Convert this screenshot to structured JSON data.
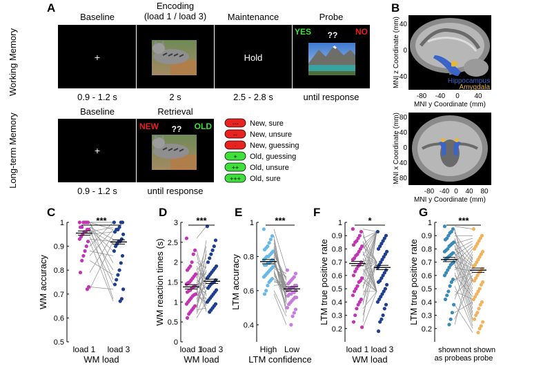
{
  "panel_letters": {
    "a": "A",
    "b": "B",
    "c": "C",
    "d": "D",
    "e": "E",
    "f": "F",
    "g": "G"
  },
  "wm": {
    "row_label": "Working Memory",
    "baseline": {
      "title": "Baseline",
      "fix": "+",
      "time": "0.9 - 1.2 s"
    },
    "encoding": {
      "title_line1": "Encoding",
      "title_line2": "(load 1 / load 3)",
      "time": "2 s"
    },
    "maintenance": {
      "title": "Maintenance",
      "text": "Hold",
      "time": "2.5 - 2.8 s"
    },
    "probe": {
      "title": "Probe",
      "yes": "YES",
      "q": "??",
      "no": "NO",
      "time": "until response"
    }
  },
  "ltm": {
    "row_label": "Long-term Memory",
    "baseline": {
      "title": "Baseline",
      "fix": "+",
      "time": "0.9 - 1.2 s"
    },
    "retrieval": {
      "title": "Retrieval",
      "new": "NEW",
      "q": "??",
      "old": "OLD",
      "time": "until response"
    },
    "legend": [
      {
        "sym": "---",
        "label": "New, sure",
        "color": "#e8221f"
      },
      {
        "sym": "--",
        "label": "New, unsure",
        "color": "#e8221f"
      },
      {
        "sym": "-",
        "label": "New, guessing",
        "color": "#e8221f"
      },
      {
        "sym": "+",
        "label": "Old, guessing",
        "color": "#3fe03a"
      },
      {
        "sym": "++",
        "label": "Old, unsure",
        "color": "#3fe03a"
      },
      {
        "sym": "+++",
        "label": "Old, sure",
        "color": "#3fe03a"
      }
    ]
  },
  "mri": {
    "sag": {
      "ylabel": "MNI z Coordinate (mm)",
      "xlabel": "MNI y Coordinate (mm)",
      "yticks": [
        "40",
        "0",
        "-40"
      ],
      "xticks": [
        "-80",
        "-40",
        "0",
        "40"
      ],
      "hippo": "Hippocampus",
      "amyg": "Amygdala"
    },
    "axial": {
      "ylabel": "MNI x Coordinate (mm)",
      "xlabel": "MNI y Coordinate (mm)",
      "yticks": [
        "-80",
        "-40",
        "0",
        "40",
        "80"
      ],
      "xticks": [
        "-80",
        "-40",
        "0",
        "40",
        "80"
      ]
    }
  },
  "colors": {
    "pink": "#c334b4",
    "navy": "#1e3f8f",
    "light_blue": "#69b9e6",
    "purple": "#c77bdc",
    "teal": "#3a8ab8",
    "orange": "#f3b35c",
    "red": "#e8221f",
    "green": "#3fe03a",
    "hippo": "#3b64c8",
    "amyg": "#e8b838"
  },
  "chart_data": [
    {
      "id": "C",
      "type": "scatter",
      "ylabel": "WM accuracy",
      "xlabel": "WM load",
      "categories": [
        "load 1",
        "load 3"
      ],
      "ylim": [
        0.5,
        1
      ],
      "yticks": [
        "0.5",
        "0.6",
        "0.7",
        "0.8",
        "0.9",
        "1"
      ],
      "significance": "***",
      "series": [
        {
          "values": [
            1,
            1,
            1,
            1,
            1,
            0.98,
            0.98,
            0.97,
            0.97,
            0.96,
            0.96,
            0.95,
            0.94,
            0.93,
            0.92,
            0.9,
            0.88,
            0.86,
            0.84,
            0.79,
            0.73,
            0.72
          ]
        },
        {
          "values": [
            1,
            1,
            1,
            0.98,
            0.97,
            0.97,
            0.96,
            0.95,
            0.93,
            0.92,
            0.92,
            0.91,
            0.9,
            0.88,
            0.86,
            0.83,
            0.8,
            0.78,
            0.76,
            0.74,
            0.72,
            0.68,
            0.67
          ]
        }
      ],
      "means": [
        0.955,
        0.918
      ]
    },
    {
      "id": "D",
      "type": "scatter",
      "ylabel": "WM reaction times (s)",
      "xlabel": "WM load",
      "categories": [
        "load 1",
        "load 3"
      ],
      "ylim": [
        0,
        3
      ],
      "yticks": [
        "0",
        "0.5",
        "1",
        "1.5",
        "2",
        "2.5",
        "3"
      ],
      "significance": "***",
      "series": [
        {
          "values": [
            2.6,
            2.3,
            2.2,
            2.0,
            1.9,
            1.85,
            1.8,
            1.7,
            1.65,
            1.6,
            1.55,
            1.5,
            1.48,
            1.45,
            1.4,
            1.38,
            1.35,
            1.3,
            1.28,
            1.25,
            1.2,
            1.18,
            1.15,
            1.1,
            1.05,
            1.0,
            0.95,
            0.9,
            0.85,
            0.8,
            0.75,
            0.7,
            0.6
          ]
        },
        {
          "values": [
            2.9,
            2.55,
            2.4,
            2.3,
            2.2,
            2.1,
            2.0,
            1.9,
            1.85,
            1.8,
            1.75,
            1.7,
            1.65,
            1.6,
            1.55,
            1.5,
            1.48,
            1.45,
            1.4,
            1.35,
            1.3,
            1.25,
            1.2,
            1.15,
            1.1,
            1.05,
            1.0,
            0.95,
            0.9,
            0.85,
            0.8,
            0.75
          ]
        }
      ],
      "means": [
        1.38,
        1.52
      ]
    },
    {
      "id": "E",
      "type": "scatter",
      "ylabel": "LTM accuracy",
      "xlabel": "LTM confidence",
      "categories": [
        "High",
        "Low"
      ],
      "ylim": [
        0.3,
        1
      ],
      "yticks": [
        "0.4",
        "0.6",
        "0.8",
        "1"
      ],
      "significance": "***",
      "series": [
        {
          "values": [
            0.96,
            0.92,
            0.9,
            0.88,
            0.86,
            0.85,
            0.84,
            0.83,
            0.82,
            0.81,
            0.8,
            0.8,
            0.79,
            0.78,
            0.78,
            0.77,
            0.76,
            0.76,
            0.75,
            0.75,
            0.74,
            0.73,
            0.72,
            0.71,
            0.7,
            0.69,
            0.68,
            0.67,
            0.66,
            0.65,
            0.63,
            0.6,
            0.58
          ]
        },
        {
          "values": [
            0.72,
            0.7,
            0.68,
            0.67,
            0.66,
            0.65,
            0.64,
            0.63,
            0.63,
            0.62,
            0.62,
            0.61,
            0.61,
            0.6,
            0.6,
            0.59,
            0.59,
            0.58,
            0.58,
            0.57,
            0.56,
            0.56,
            0.55,
            0.54,
            0.53,
            0.52,
            0.5,
            0.49,
            0.47,
            0.45,
            0.4
          ]
        }
      ],
      "means": [
        0.77,
        0.61
      ]
    },
    {
      "id": "F",
      "type": "scatter",
      "ylabel": "LTM true positive rate",
      "xlabel": "WM load",
      "categories": [
        "load 1",
        "load 3"
      ],
      "ylim": [
        0.1,
        1
      ],
      "yticks": [
        "0.2",
        "0.3",
        "0.4",
        "0.5",
        "0.6",
        "0.7",
        "0.8",
        "0.9",
        "1"
      ],
      "significance": "*",
      "series": [
        {
          "values": [
            0.95,
            0.93,
            0.9,
            0.88,
            0.86,
            0.85,
            0.83,
            0.82,
            0.8,
            0.78,
            0.76,
            0.75,
            0.73,
            0.72,
            0.7,
            0.68,
            0.67,
            0.65,
            0.63,
            0.6,
            0.58,
            0.56,
            0.55,
            0.52,
            0.5,
            0.48,
            0.45,
            0.42,
            0.4,
            0.38,
            0.35,
            0.3,
            0.25,
            0.21
          ]
        },
        {
          "values": [
            0.93,
            0.9,
            0.88,
            0.86,
            0.84,
            0.82,
            0.8,
            0.78,
            0.76,
            0.74,
            0.72,
            0.7,
            0.68,
            0.66,
            0.64,
            0.62,
            0.6,
            0.58,
            0.56,
            0.55,
            0.53,
            0.5,
            0.48,
            0.46,
            0.44,
            0.42,
            0.4,
            0.38,
            0.35,
            0.3,
            0.27,
            0.25,
            0.18
          ]
        }
      ],
      "means": [
        0.69,
        0.66
      ]
    },
    {
      "id": "G",
      "type": "scatter",
      "ylabel": "LTM true positive rate",
      "xlabel": "",
      "categories": [
        "shown as probe",
        "not shown as probe"
      ],
      "ylim": [
        0.1,
        1
      ],
      "yticks": [
        "0.2",
        "0.3",
        "0.4",
        "0.5",
        "0.6",
        "0.7",
        "0.8",
        "0.9",
        "1"
      ],
      "significance": "***",
      "series": [
        {
          "values": [
            0.97,
            0.95,
            0.93,
            0.92,
            0.9,
            0.88,
            0.87,
            0.85,
            0.84,
            0.83,
            0.82,
            0.8,
            0.79,
            0.78,
            0.77,
            0.76,
            0.75,
            0.74,
            0.73,
            0.72,
            0.7,
            0.69,
            0.68,
            0.66,
            0.64,
            0.62,
            0.6,
            0.57,
            0.55,
            0.52,
            0.48,
            0.45,
            0.42,
            0.38,
            0.32,
            0.27,
            0.23
          ]
        },
        {
          "values": [
            0.95,
            0.9,
            0.88,
            0.86,
            0.84,
            0.82,
            0.8,
            0.78,
            0.76,
            0.74,
            0.72,
            0.7,
            0.68,
            0.67,
            0.65,
            0.63,
            0.62,
            0.6,
            0.58,
            0.56,
            0.55,
            0.53,
            0.5,
            0.48,
            0.46,
            0.44,
            0.42,
            0.4,
            0.38,
            0.35,
            0.32,
            0.3,
            0.27,
            0.25,
            0.22,
            0.2,
            0.17
          ]
        }
      ],
      "means": [
        0.72,
        0.64
      ]
    }
  ],
  "chart_colors": [
    [
      "#c334b4",
      "#1e3f8f"
    ],
    [
      "#c334b4",
      "#1e3f8f"
    ],
    [
      "#69b9e6",
      "#c77bdc"
    ],
    [
      "#c334b4",
      "#1e3f8f"
    ],
    [
      "#3a8ab8",
      "#f3b35c"
    ]
  ]
}
